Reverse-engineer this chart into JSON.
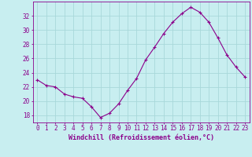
{
  "x": [
    0,
    1,
    2,
    3,
    4,
    5,
    6,
    7,
    8,
    9,
    10,
    11,
    12,
    13,
    14,
    15,
    16,
    17,
    18,
    19,
    20,
    21,
    22,
    23
  ],
  "y": [
    23.0,
    22.2,
    22.0,
    21.0,
    20.6,
    20.4,
    19.2,
    17.7,
    18.3,
    19.6,
    21.5,
    23.2,
    25.8,
    27.6,
    29.5,
    31.1,
    32.3,
    33.2,
    32.5,
    31.1,
    28.9,
    26.5,
    24.8,
    23.4
  ],
  "line_color": "#8B008B",
  "marker": "+",
  "marker_size": 3,
  "bg_color": "#c8eef0",
  "grid_color": "#a8d8da",
  "axis_color": "#8B008B",
  "xlabel": "Windchill (Refroidissement éolien,°C)",
  "xlabel_fontsize": 6.0,
  "tick_fontsize": 5.5,
  "ylim": [
    17,
    34
  ],
  "yticks": [
    18,
    20,
    22,
    24,
    26,
    28,
    30,
    32
  ],
  "title": ""
}
